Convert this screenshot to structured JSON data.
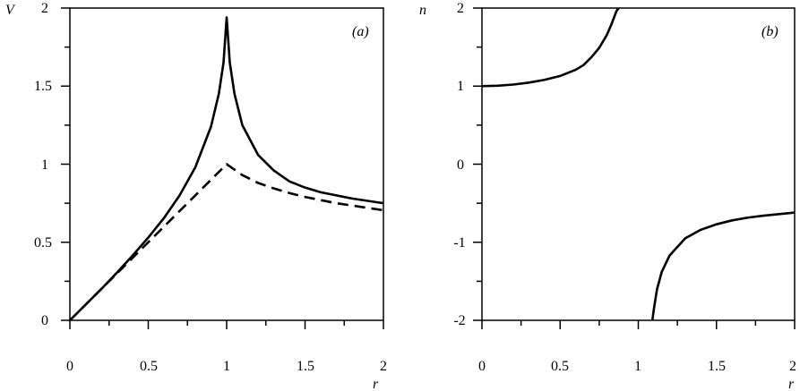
{
  "chart_data": [
    {
      "type": "line",
      "panel_label": "(a)",
      "xlabel": "r",
      "ylabel": "V",
      "xlim": [
        0,
        2
      ],
      "ylim": [
        0,
        2
      ],
      "xticks": [
        0,
        0.5,
        1,
        1.5,
        2
      ],
      "xtick_labels": [
        "0",
        "0.5",
        "1",
        "1.5",
        "2"
      ],
      "yticks": [
        0,
        0.5,
        1,
        1.5,
        2
      ],
      "ytick_labels": [
        "0",
        "0.5",
        "1",
        "1.5",
        "2"
      ],
      "grid": false,
      "series": [
        {
          "style": "solid",
          "x": [
            0,
            0.1,
            0.2,
            0.3,
            0.4,
            0.5,
            0.6,
            0.7,
            0.8,
            0.9,
            0.95,
            0.98,
            1.0,
            1.02,
            1.05,
            1.1,
            1.2,
            1.3,
            1.4,
            1.5,
            1.6,
            1.7,
            1.8,
            1.9,
            2.0
          ],
          "y": [
            0,
            0.1,
            0.2,
            0.305,
            0.415,
            0.53,
            0.655,
            0.8,
            0.98,
            1.24,
            1.45,
            1.65,
            1.94,
            1.65,
            1.45,
            1.25,
            1.06,
            0.96,
            0.89,
            0.85,
            0.82,
            0.8,
            0.78,
            0.765,
            0.75
          ]
        },
        {
          "style": "dashed",
          "x": [
            0,
            0.1,
            0.2,
            0.3,
            0.4,
            0.5,
            0.6,
            0.7,
            0.8,
            0.9,
            1.0,
            1.1,
            1.2,
            1.3,
            1.4,
            1.5,
            1.6,
            1.7,
            1.8,
            1.9,
            2.0
          ],
          "y": [
            0,
            0.1,
            0.2,
            0.3,
            0.4,
            0.5,
            0.6,
            0.7,
            0.8,
            0.9,
            1.0,
            0.93,
            0.88,
            0.845,
            0.815,
            0.79,
            0.77,
            0.75,
            0.735,
            0.72,
            0.705
          ]
        }
      ]
    },
    {
      "type": "line",
      "panel_label": "(b)",
      "xlabel": "r",
      "ylabel": "n",
      "xlim": [
        0,
        2
      ],
      "ylim": [
        -2,
        2
      ],
      "xticks": [
        0,
        0.5,
        1,
        1.5,
        2
      ],
      "xtick_labels": [
        "0",
        "0.5",
        "1",
        "1.5",
        "2"
      ],
      "yticks": [
        -2,
        -1,
        0,
        1,
        2
      ],
      "ytick_labels": [
        "-2",
        "-1",
        "0",
        "1",
        "2"
      ],
      "grid": false,
      "series": [
        {
          "style": "solid",
          "x": [
            0,
            0.1,
            0.2,
            0.3,
            0.4,
            0.5,
            0.6,
            0.65,
            0.7,
            0.75,
            0.8,
            0.83,
            0.86,
            0.875
          ],
          "y": [
            1.0,
            1.005,
            1.02,
            1.045,
            1.08,
            1.13,
            1.21,
            1.27,
            1.37,
            1.49,
            1.66,
            1.8,
            1.96,
            2.0
          ]
        },
        {
          "style": "solid",
          "x": [
            1.09,
            1.1,
            1.12,
            1.15,
            1.2,
            1.3,
            1.4,
            1.5,
            1.6,
            1.7,
            1.8,
            1.9,
            2.0
          ],
          "y": [
            -2.0,
            -1.85,
            -1.6,
            -1.38,
            -1.17,
            -0.95,
            -0.84,
            -0.77,
            -0.72,
            -0.685,
            -0.66,
            -0.64,
            -0.62
          ]
        }
      ]
    }
  ]
}
